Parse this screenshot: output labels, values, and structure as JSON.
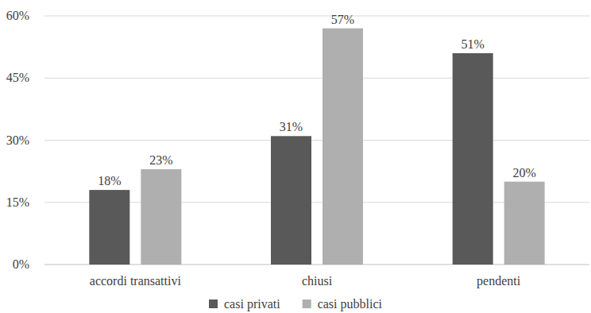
{
  "chart_data": {
    "type": "bar",
    "categories": [
      "accordi transattivi",
      "chiusi",
      "pendenti"
    ],
    "series": [
      {
        "name": "casi privati",
        "color": "#595959",
        "values": [
          18,
          31,
          51
        ],
        "value_labels": [
          "18%",
          "31%",
          "51%"
        ]
      },
      {
        "name": "casi pubblici",
        "color": "#afafaf",
        "values": [
          23,
          57,
          20
        ],
        "value_labels": [
          "23%",
          "57%",
          "20%"
        ]
      }
    ],
    "ylim": [
      0,
      60
    ],
    "yticks": [
      {
        "value": 0,
        "label": "0%"
      },
      {
        "value": 15,
        "label": "15%"
      },
      {
        "value": 30,
        "label": "30%"
      },
      {
        "value": 45,
        "label": "45%"
      },
      {
        "value": 60,
        "label": "60%"
      }
    ],
    "grid": true,
    "data_labels": true,
    "legend": "bottom"
  }
}
